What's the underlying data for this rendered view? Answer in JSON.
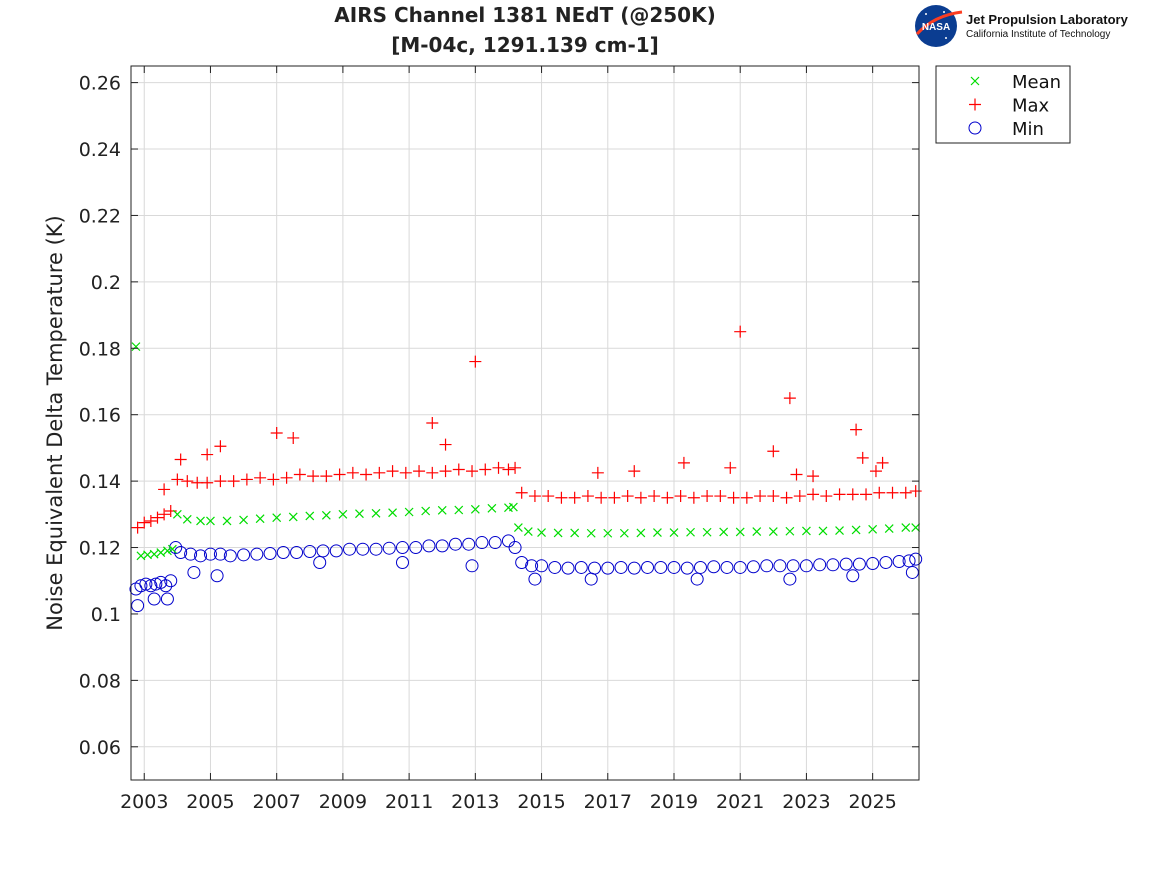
{
  "header": {
    "logo_title": "Jet Propulsion Laboratory",
    "logo_subtitle": "California Institute of Technology",
    "logo_badge": "NASA"
  },
  "colors": {
    "mean": "#00dd00",
    "max": "#ff0000",
    "min": "#0000cc",
    "grid": "#d9d9d9"
  },
  "chart_data": {
    "type": "scatter",
    "title": "AIRS Channel 1381 NEdT (@250K)",
    "subtitle": "[M-04c, 1291.139 cm-1]",
    "xlabel": "",
    "ylabel": "Noise Equivalent Delta Temperature (K)",
    "xlim": [
      2002.6,
      2026.4
    ],
    "ylim": [
      0.05,
      0.265
    ],
    "xticks": [
      2003,
      2005,
      2007,
      2009,
      2011,
      2013,
      2015,
      2017,
      2019,
      2021,
      2023,
      2025
    ],
    "yticks": [
      0.06,
      0.08,
      0.1,
      0.12,
      0.14,
      0.16,
      0.18,
      0.2,
      0.22,
      0.24,
      0.26
    ],
    "ytick_labels": [
      "0.06",
      "0.08",
      "0.1",
      "0.12",
      "0.14",
      "0.16",
      "0.18",
      "0.2",
      "0.22",
      "0.24",
      "0.26"
    ],
    "grid": true,
    "legend_position": "outside-top-right",
    "series": [
      {
        "name": "Mean",
        "marker": "x",
        "x": [
          2002.75,
          2002.9,
          2003.1,
          2003.3,
          2003.5,
          2003.7,
          2003.85,
          2004.0,
          2004.3,
          2004.7,
          2005.0,
          2005.5,
          2006.0,
          2006.5,
          2007.0,
          2007.5,
          2008.0,
          2008.5,
          2009.0,
          2009.5,
          2010.0,
          2010.5,
          2011.0,
          2011.5,
          2012.0,
          2012.5,
          2013.0,
          2013.5,
          2014.0,
          2014.15,
          2014.3,
          2014.6,
          2015.0,
          2015.5,
          2016.0,
          2016.5,
          2017.0,
          2017.5,
          2018.0,
          2018.5,
          2019.0,
          2019.5,
          2020.0,
          2020.5,
          2021.0,
          2021.5,
          2022.0,
          2022.5,
          2023.0,
          2023.5,
          2024.0,
          2024.5,
          2025.0,
          2025.5,
          2026.0,
          2026.3
        ],
        "y": [
          0.1805,
          0.1175,
          0.1178,
          0.118,
          0.1185,
          0.119,
          0.1195,
          0.13,
          0.1285,
          0.128,
          0.128,
          0.128,
          0.1283,
          0.1287,
          0.129,
          0.1292,
          0.1295,
          0.1297,
          0.13,
          0.1302,
          0.1303,
          0.1305,
          0.1307,
          0.131,
          0.1312,
          0.1313,
          0.1315,
          0.1318,
          0.132,
          0.1322,
          0.126,
          0.1248,
          0.1245,
          0.1244,
          0.1244,
          0.1243,
          0.1243,
          0.1243,
          0.1244,
          0.1245,
          0.1245,
          0.1246,
          0.1246,
          0.1247,
          0.1247,
          0.1248,
          0.1248,
          0.1249,
          0.125,
          0.125,
          0.1251,
          0.1253,
          0.1255,
          0.1257,
          0.126,
          0.126
        ]
      },
      {
        "name": "Max",
        "marker": "+",
        "x": [
          2002.8,
          2003.0,
          2003.2,
          2003.4,
          2003.6,
          2003.8,
          2004.0,
          2004.3,
          2004.6,
          2004.9,
          2005.3,
          2005.7,
          2006.1,
          2006.5,
          2006.9,
          2007.3,
          2007.7,
          2008.1,
          2008.5,
          2008.9,
          2009.3,
          2009.7,
          2010.1,
          2010.5,
          2010.9,
          2011.3,
          2011.7,
          2012.1,
          2012.5,
          2012.9,
          2013.3,
          2013.7,
          2014.0,
          2014.2,
          2014.4,
          2014.8,
          2015.2,
          2015.6,
          2016.0,
          2016.4,
          2016.8,
          2017.2,
          2017.6,
          2018.0,
          2018.4,
          2018.8,
          2019.2,
          2019.6,
          2020.0,
          2020.4,
          2020.8,
          2021.2,
          2021.6,
          2022.0,
          2022.4,
          2022.8,
          2023.2,
          2023.6,
          2024.0,
          2024.4,
          2024.8,
          2025.2,
          2025.6,
          2026.0,
          2026.3,
          2003.6,
          2004.1,
          2004.9,
          2005.3,
          2007.0,
          2007.5,
          2011.7,
          2012.1,
          2013.0,
          2016.7,
          2017.8,
          2019.3,
          2020.7,
          2021.0,
          2022.0,
          2022.5,
          2022.7,
          2023.2,
          2024.5,
          2024.7,
          2025.1,
          2025.3
        ],
        "y": [
          0.126,
          0.1275,
          0.128,
          0.129,
          0.13,
          0.131,
          0.1405,
          0.14,
          0.1395,
          0.1395,
          0.14,
          0.14,
          0.1405,
          0.141,
          0.1405,
          0.141,
          0.142,
          0.1415,
          0.1415,
          0.142,
          0.1425,
          0.142,
          0.1425,
          0.143,
          0.1425,
          0.143,
          0.1425,
          0.143,
          0.1435,
          0.143,
          0.1435,
          0.144,
          0.1435,
          0.144,
          0.1365,
          0.1355,
          0.1355,
          0.135,
          0.135,
          0.1355,
          0.135,
          0.135,
          0.1355,
          0.135,
          0.1355,
          0.135,
          0.1355,
          0.135,
          0.1355,
          0.1355,
          0.135,
          0.135,
          0.1355,
          0.1355,
          0.135,
          0.1355,
          0.136,
          0.1355,
          0.136,
          0.136,
          0.136,
          0.1365,
          0.1365,
          0.1365,
          0.137,
          0.1375,
          0.1465,
          0.148,
          0.1505,
          0.1545,
          0.153,
          0.1575,
          0.151,
          0.176,
          0.1425,
          0.143,
          0.1455,
          0.144,
          0.185,
          0.149,
          0.165,
          0.142,
          0.1415,
          0.1555,
          0.147,
          0.143,
          0.1455
        ]
      },
      {
        "name": "Min",
        "marker": "o",
        "x": [
          2002.75,
          2002.9,
          2003.05,
          2003.2,
          2003.35,
          2003.5,
          2003.65,
          2003.8,
          2003.95,
          2004.1,
          2004.4,
          2004.7,
          2005.0,
          2005.3,
          2005.6,
          2006.0,
          2006.4,
          2006.8,
          2007.2,
          2007.6,
          2008.0,
          2008.4,
          2008.8,
          2009.2,
          2009.6,
          2010.0,
          2010.4,
          2010.8,
          2011.2,
          2011.6,
          2012.0,
          2012.4,
          2012.8,
          2013.2,
          2013.6,
          2014.0,
          2014.2,
          2014.4,
          2014.7,
          2015.0,
          2015.4,
          2015.8,
          2016.2,
          2016.6,
          2017.0,
          2017.4,
          2017.8,
          2018.2,
          2018.6,
          2019.0,
          2019.4,
          2019.8,
          2020.2,
          2020.6,
          2021.0,
          2021.4,
          2021.8,
          2022.2,
          2022.6,
          2023.0,
          2023.4,
          2023.8,
          2024.2,
          2024.6,
          2025.0,
          2025.4,
          2025.8,
          2026.1,
          2026.3,
          2002.8,
          2003.3,
          2003.7,
          2004.5,
          2005.2,
          2008.3,
          2010.8,
          2012.9,
          2014.8,
          2016.5,
          2019.7,
          2022.5,
          2024.4,
          2026.2
        ],
        "y": [
          0.1075,
          0.1085,
          0.109,
          0.1085,
          0.109,
          0.1095,
          0.1085,
          0.11,
          0.12,
          0.1185,
          0.118,
          0.1175,
          0.118,
          0.118,
          0.1175,
          0.1178,
          0.118,
          0.1182,
          0.1185,
          0.1185,
          0.1188,
          0.119,
          0.119,
          0.1195,
          0.1195,
          0.1195,
          0.1198,
          0.12,
          0.12,
          0.1205,
          0.1205,
          0.121,
          0.121,
          0.1215,
          0.1215,
          0.122,
          0.12,
          0.1155,
          0.1145,
          0.1145,
          0.114,
          0.1138,
          0.114,
          0.1138,
          0.1138,
          0.114,
          0.1138,
          0.114,
          0.114,
          0.114,
          0.1138,
          0.114,
          0.1142,
          0.114,
          0.114,
          0.1142,
          0.1145,
          0.1145,
          0.1145,
          0.1145,
          0.1148,
          0.1148,
          0.115,
          0.115,
          0.1152,
          0.1155,
          0.1158,
          0.116,
          0.1165,
          0.1025,
          0.1045,
          0.1045,
          0.1125,
          0.1115,
          0.1155,
          0.1155,
          0.1145,
          0.1105,
          0.1105,
          0.1105,
          0.1105,
          0.1115,
          0.1125
        ]
      }
    ]
  }
}
